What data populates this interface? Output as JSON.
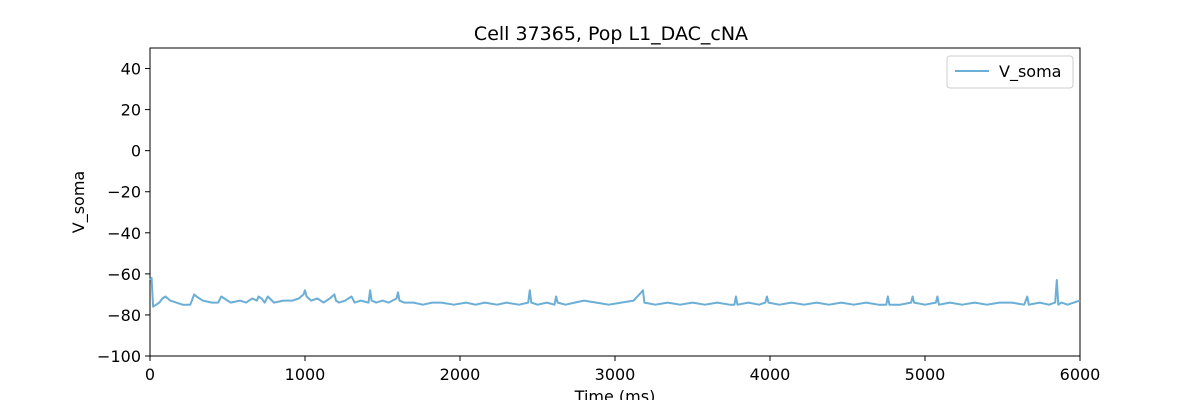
{
  "chart_data": {
    "type": "line",
    "title": "Cell 37365, Pop L1_DAC_cNA",
    "xlabel": "Time (ms)",
    "ylabel": "V_soma",
    "xlim": [
      0,
      6000
    ],
    "ylim": [
      -100,
      50
    ],
    "xticks": [
      0,
      1000,
      2000,
      3000,
      4000,
      5000,
      6000
    ],
    "yticks": [
      40,
      20,
      0,
      -20,
      -40,
      -60,
      -80,
      -100
    ],
    "xtick_labels": [
      "0",
      "1000",
      "2000",
      "3000",
      "4000",
      "5000",
      "6000"
    ],
    "ytick_labels": [
      "40",
      "20",
      "0",
      "−20",
      "−40",
      "−60",
      "−80",
      "−100"
    ],
    "grid": false,
    "legend": {
      "position": "top-right",
      "entries": [
        "V_soma"
      ]
    },
    "series": [
      {
        "name": "V_soma",
        "color": "#6baed6",
        "x": [
          0,
          10,
          20,
          40,
          60,
          80,
          100,
          130,
          170,
          210,
          260,
          285,
          300,
          340,
          400,
          440,
          460,
          480,
          520,
          580,
          620,
          660,
          690,
          700,
          720,
          740,
          760,
          800,
          860,
          920,
          960,
          990,
          1000,
          1010,
          1040,
          1080,
          1120,
          1160,
          1190,
          1200,
          1220,
          1260,
          1300,
          1320,
          1360,
          1410,
          1420,
          1430,
          1460,
          1500,
          1540,
          1590,
          1600,
          1610,
          1640,
          1700,
          1760,
          1820,
          1880,
          1960,
          2040,
          2100,
          2160,
          2240,
          2300,
          2380,
          2440,
          2450,
          2460,
          2500,
          2560,
          2610,
          2620,
          2630,
          2680,
          2740,
          2800,
          2880,
          2960,
          3040,
          3120,
          3170,
          3180,
          3190,
          3260,
          3340,
          3420,
          3500,
          3580,
          3660,
          3740,
          3770,
          3780,
          3790,
          3860,
          3930,
          3970,
          3980,
          3990,
          4060,
          4140,
          4220,
          4300,
          4380,
          4460,
          4540,
          4620,
          4700,
          4750,
          4760,
          4770,
          4840,
          4910,
          4920,
          4930,
          5000,
          5070,
          5080,
          5090,
          5160,
          5240,
          5320,
          5400,
          5480,
          5560,
          5640,
          5660,
          5670,
          5740,
          5800,
          5840,
          5850,
          5860,
          5880,
          5920,
          5960,
          6000
        ],
        "values": [
          -63,
          -62,
          -76,
          -75,
          -74,
          -72,
          -71,
          -73,
          -74,
          -75,
          -75,
          -70,
          -71,
          -73,
          -74,
          -74,
          -71,
          -72,
          -74,
          -73,
          -74,
          -72,
          -73,
          -71,
          -72,
          -74,
          -71,
          -74,
          -73,
          -73,
          -72,
          -70,
          -68,
          -71,
          -73,
          -72,
          -74,
          -72,
          -70,
          -73,
          -74,
          -73,
          -71,
          -74,
          -73,
          -74,
          -68,
          -73,
          -74,
          -73,
          -74,
          -72,
          -69,
          -73,
          -74,
          -74,
          -75,
          -74,
          -74,
          -75,
          -74,
          -75,
          -74,
          -75,
          -74,
          -75,
          -74,
          -68,
          -74,
          -75,
          -74,
          -75,
          -71,
          -74,
          -75,
          -74,
          -73,
          -74,
          -75,
          -74,
          -73,
          -69,
          -68,
          -74,
          -75,
          -74,
          -75,
          -74,
          -75,
          -74,
          -75,
          -75,
          -71,
          -75,
          -74,
          -75,
          -74,
          -71,
          -74,
          -75,
          -74,
          -75,
          -74,
          -75,
          -74,
          -75,
          -74,
          -75,
          -75,
          -71,
          -75,
          -75,
          -74,
          -71,
          -74,
          -75,
          -74,
          -71,
          -75,
          -74,
          -75,
          -74,
          -75,
          -74,
          -74,
          -75,
          -71,
          -75,
          -74,
          -75,
          -74,
          -63,
          -75,
          -74,
          -75,
          -74,
          -73
        ]
      }
    ]
  }
}
